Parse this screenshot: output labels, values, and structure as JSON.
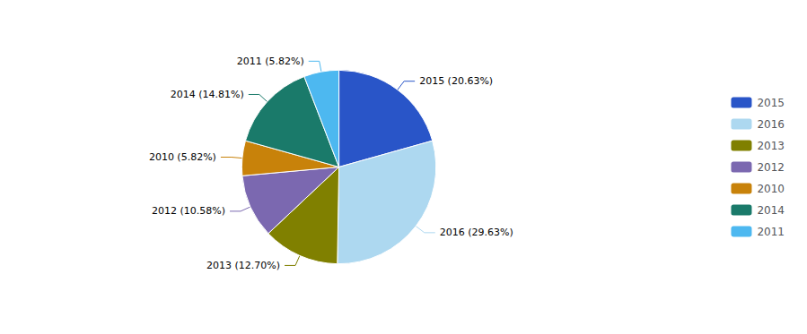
{
  "chart_data": {
    "type": "pie",
    "categories": [
      "2015",
      "2016",
      "2013",
      "2012",
      "2010",
      "2014",
      "2011"
    ],
    "values": [
      20.63,
      29.63,
      12.7,
      10.58,
      5.82,
      14.81,
      5.82
    ],
    "value_labels": [
      "2015 (20.63%)",
      "2016 (29.63%)",
      "2013 (12.70%)",
      "2012 (10.58%)",
      "2010 (5.82%)",
      "2014 (14.81%)",
      "2011 (5.82%)"
    ],
    "colors": [
      "#2955c8",
      "#add8f0",
      "#808000",
      "#7b68b0",
      "#c8820a",
      "#1a7a6a",
      "#4db8f0"
    ],
    "data_labels": true,
    "legend": "right"
  }
}
